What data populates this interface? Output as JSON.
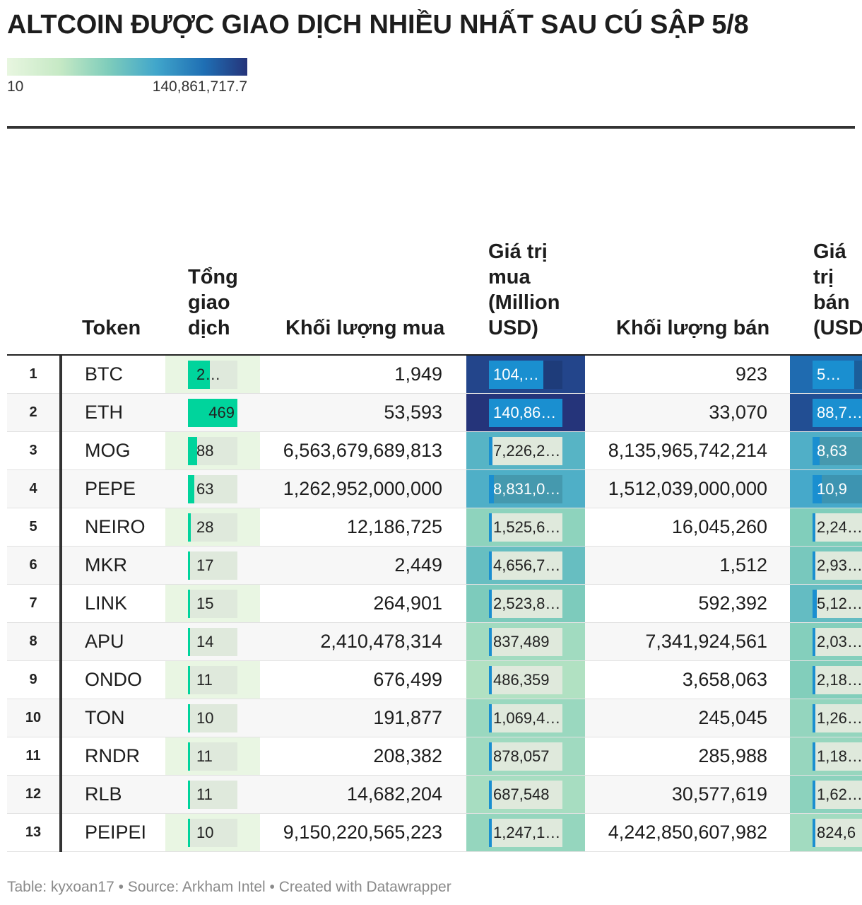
{
  "title": "ALTCOIN ĐƯỢC GIAO DỊCH NHIỀU NHẤT SAU CÚ SẬP 5/8",
  "legend": {
    "min_label": "10",
    "max_label": "140,861,717.7"
  },
  "columns": {
    "token": "Token",
    "total": "Tổng\ngiao\ndịch",
    "buy_volume": "Khối lượng mua",
    "buy_value": "Giá trị\nmua\n(Million\nUSD)",
    "sell_volume": "Khối lượng bán",
    "sell_value": "Giá\ntrị\nbán\n(USD"
  },
  "footer": "Table: kyxoan17 • Source: Arkham Intel • Created with Datawrapper",
  "colors": {
    "bar": "#00d49c",
    "value_bar": "#1a8fd0",
    "heat_low": "#e8f6e0",
    "heat_high": "#25347a"
  },
  "chart_data": {
    "type": "table",
    "rows": [
      {
        "rank": "1",
        "token": "BTC",
        "total": 210,
        "total_label": "2…",
        "buy_volume": "1,949",
        "buy_value": 104000000,
        "buy_value_label": "104,…",
        "sell_volume": "923",
        "sell_value": 50000000,
        "sell_value_label": "5…"
      },
      {
        "rank": "2",
        "token": "ETH",
        "total": 469,
        "total_label": "469",
        "buy_volume": "53,593",
        "buy_value": 140861717.7,
        "buy_value_label": "140,86…",
        "sell_volume": "33,070",
        "sell_value": 88700000,
        "sell_value_label": "88,7…"
      },
      {
        "rank": "3",
        "token": "MOG",
        "total": 88,
        "total_label": "88",
        "buy_volume": "6,563,679,689,813",
        "buy_value": 7226200,
        "buy_value_label": "7,226,2…",
        "sell_volume": "8,135,965,742,214",
        "sell_value": 8630000,
        "sell_value_label": "8,63"
      },
      {
        "rank": "4",
        "token": "PEPE",
        "total": 63,
        "total_label": "63",
        "buy_volume": "1,262,952,000,000",
        "buy_value": 8831000,
        "buy_value_label": "8,831,0…",
        "sell_volume": "1,512,039,000,000",
        "sell_value": 10900000,
        "sell_value_label": "10,9"
      },
      {
        "rank": "5",
        "token": "NEIRO",
        "total": 28,
        "total_label": "28",
        "buy_volume": "12,186,725",
        "buy_value": 1525600,
        "buy_value_label": "1,525,6…",
        "sell_volume": "16,045,260",
        "sell_value": 2240000,
        "sell_value_label": "2,24…"
      },
      {
        "rank": "6",
        "token": "MKR",
        "total": 17,
        "total_label": "17",
        "buy_volume": "2,449",
        "buy_value": 4656700,
        "buy_value_label": "4,656,7…",
        "sell_volume": "1,512",
        "sell_value": 2930000,
        "sell_value_label": "2,93…"
      },
      {
        "rank": "7",
        "token": "LINK",
        "total": 15,
        "total_label": "15",
        "buy_volume": "264,901",
        "buy_value": 2523800,
        "buy_value_label": "2,523,8…",
        "sell_volume": "592,392",
        "sell_value": 5120000,
        "sell_value_label": "5,12…"
      },
      {
        "rank": "8",
        "token": "APU",
        "total": 14,
        "total_label": "14",
        "buy_volume": "2,410,478,314",
        "buy_value": 837489,
        "buy_value_label": "837,489",
        "sell_volume": "7,341,924,561",
        "sell_value": 2030000,
        "sell_value_label": "2,03…"
      },
      {
        "rank": "9",
        "token": "ONDO",
        "total": 11,
        "total_label": "11",
        "buy_volume": "676,499",
        "buy_value": 486359,
        "buy_value_label": "486,359",
        "sell_volume": "3,658,063",
        "sell_value": 2180000,
        "sell_value_label": "2,18…"
      },
      {
        "rank": "10",
        "token": "TON",
        "total": 10,
        "total_label": "10",
        "buy_volume": "191,877",
        "buy_value": 1069400,
        "buy_value_label": "1,069,4…",
        "sell_volume": "245,045",
        "sell_value": 1260000,
        "sell_value_label": "1,26…"
      },
      {
        "rank": "11",
        "token": "RNDR",
        "total": 11,
        "total_label": "11",
        "buy_volume": "208,382",
        "buy_value": 878057,
        "buy_value_label": "878,057",
        "sell_volume": "285,988",
        "sell_value": 1180000,
        "sell_value_label": "1,18…"
      },
      {
        "rank": "12",
        "token": "RLB",
        "total": 11,
        "total_label": "11",
        "buy_volume": "14,682,204",
        "buy_value": 687548,
        "buy_value_label": "687,548",
        "sell_volume": "30,577,619",
        "sell_value": 1620000,
        "sell_value_label": "1,62…"
      },
      {
        "rank": "13",
        "token": "PEIPEI",
        "total": 10,
        "total_label": "10",
        "buy_volume": "9,150,220,565,223",
        "buy_value": 1247100,
        "buy_value_label": "1,247,1…",
        "sell_volume": "4,242,850,607,982",
        "sell_value": 824600,
        "sell_value_label": "824,6"
      }
    ]
  }
}
